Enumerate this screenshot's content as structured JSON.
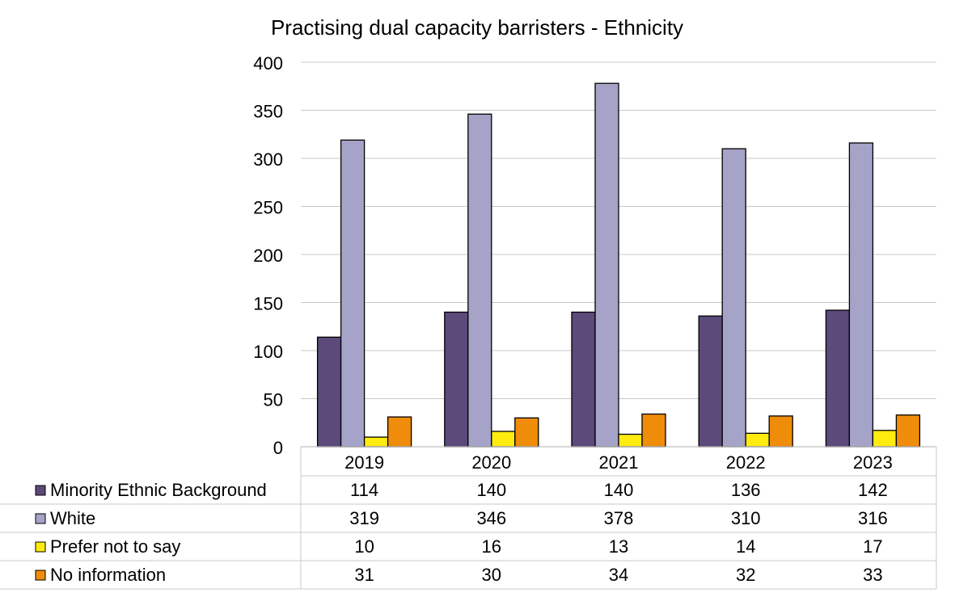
{
  "chart_data": {
    "type": "bar",
    "title": "Practising dual capacity barristers - Ethnicity",
    "xlabel": "",
    "ylabel": "",
    "ylim": [
      0,
      400
    ],
    "yticks": [
      0,
      50,
      100,
      150,
      200,
      250,
      300,
      350,
      400
    ],
    "grid": true,
    "legend": "data-table-below",
    "categories": [
      "2019",
      "2020",
      "2021",
      "2022",
      "2023"
    ],
    "series": [
      {
        "name": "Minority Ethnic Background",
        "color": "#5B4A7A",
        "values": [
          114,
          140,
          140,
          136,
          142
        ]
      },
      {
        "name": "White",
        "color": "#A5A3C7",
        "values": [
          319,
          346,
          378,
          310,
          316
        ]
      },
      {
        "name": "Prefer not to say",
        "color": "#FFEB0F",
        "values": [
          10,
          16,
          13,
          14,
          17
        ]
      },
      {
        "name": "No information",
        "color": "#EF8C09",
        "values": [
          31,
          30,
          34,
          32,
          33
        ]
      }
    ]
  }
}
